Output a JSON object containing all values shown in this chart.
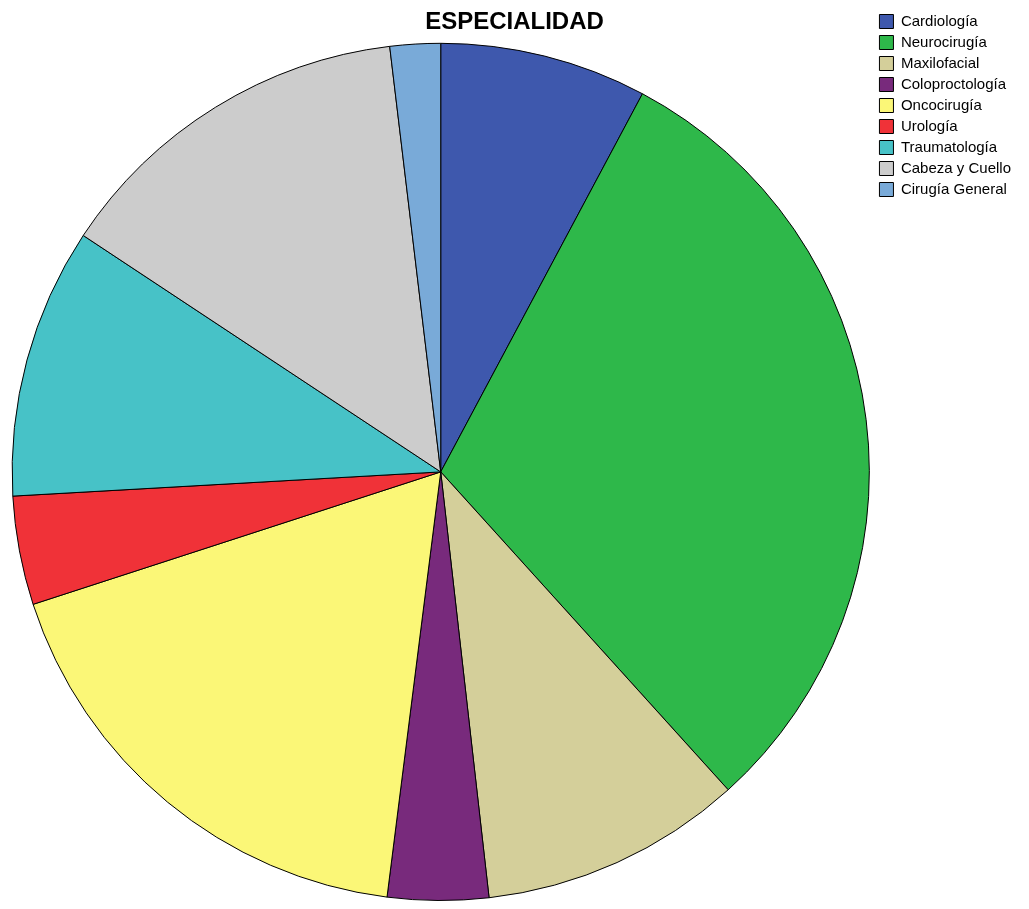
{
  "chart_data": {
    "type": "pie",
    "title": "ESPECIALIDAD",
    "categories": [
      "Cardiología",
      "Neurocirugía",
      "Maxilofacial",
      "Coloproctología",
      "Oncocirugía",
      "Urología",
      "Traumatología",
      "Cabeza y Cuello",
      "Cirugía General"
    ],
    "values": [
      7.8,
      30.5,
      9.9,
      3.8,
      18.0,
      4.1,
      10.2,
      13.8,
      1.9
    ],
    "colors": [
      "#3e58ad",
      "#2eb84a",
      "#d4cf9a",
      "#782a7c",
      "#fbf777",
      "#f03238",
      "#47c2c7",
      "#cccccc",
      "#79aad8"
    ],
    "legend": "top right"
  }
}
